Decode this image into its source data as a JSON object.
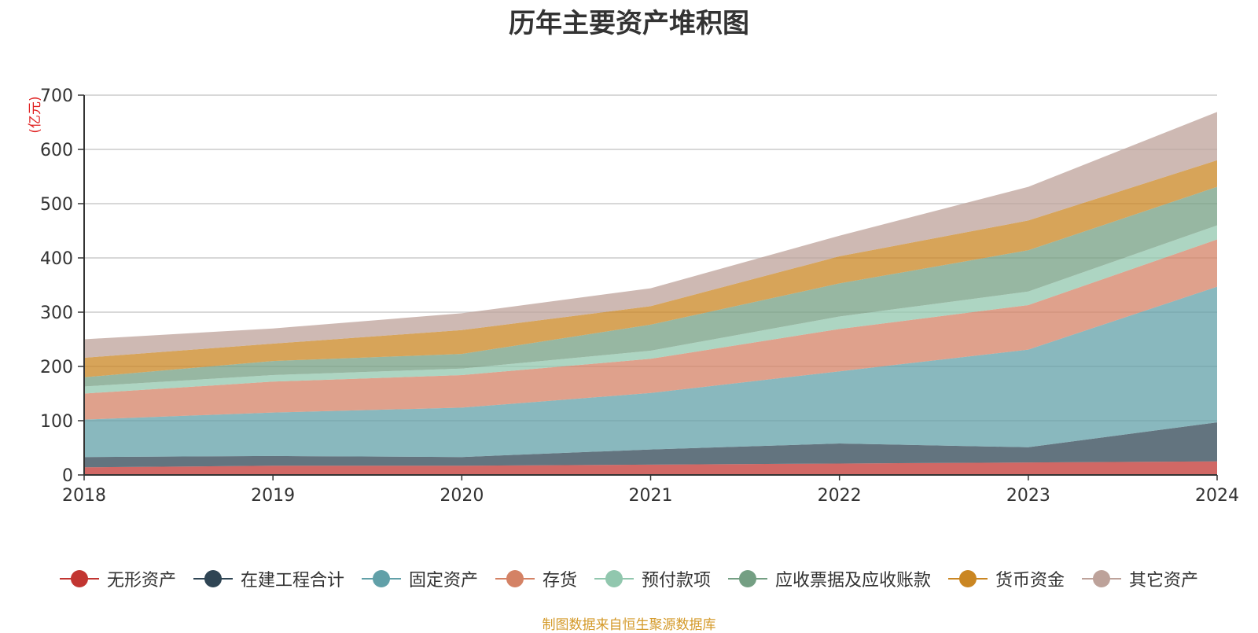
{
  "chart_data": {
    "type": "area",
    "stacked": true,
    "title": "历年主要资产堆积图",
    "ylabel": "(亿元)",
    "x": [
      "2018",
      "2019",
      "2020",
      "2021",
      "2022",
      "2023",
      "2024"
    ],
    "ylim": [
      0,
      700
    ],
    "yticks": [
      "0",
      "100",
      "200",
      "300",
      "400",
      "500",
      "600",
      "700"
    ],
    "grid": true,
    "legend_position": "bottom",
    "series": [
      {
        "name": "无形资产",
        "color": "#c23531",
        "values": [
          14,
          17,
          17,
          19,
          21,
          23,
          25
        ]
      },
      {
        "name": "在建工程合计",
        "color": "#2f4554",
        "values": [
          19,
          18,
          16,
          28,
          37,
          28,
          72
        ]
      },
      {
        "name": "固定资产",
        "color": "#61a0a8",
        "values": [
          69,
          80,
          91,
          104,
          133,
          180,
          250
        ]
      },
      {
        "name": "存货",
        "color": "#d48265",
        "values": [
          48,
          57,
          60,
          63,
          78,
          82,
          87
        ]
      },
      {
        "name": "预付款项",
        "color": "#91c7ae",
        "values": [
          13,
          12,
          12,
          15,
          23,
          25,
          26
        ]
      },
      {
        "name": "应收票据及应收账款",
        "color": "#749f83",
        "values": [
          17,
          26,
          27,
          48,
          61,
          76,
          71
        ]
      },
      {
        "name": "货币资金",
        "color": "#ca8622",
        "values": [
          36,
          32,
          44,
          34,
          50,
          55,
          49
        ]
      },
      {
        "name": "其它资产",
        "color": "#bda29a",
        "values": [
          34,
          28,
          31,
          33,
          38,
          62,
          89
        ]
      }
    ],
    "source": "制图数据来自恒生聚源数据库"
  }
}
